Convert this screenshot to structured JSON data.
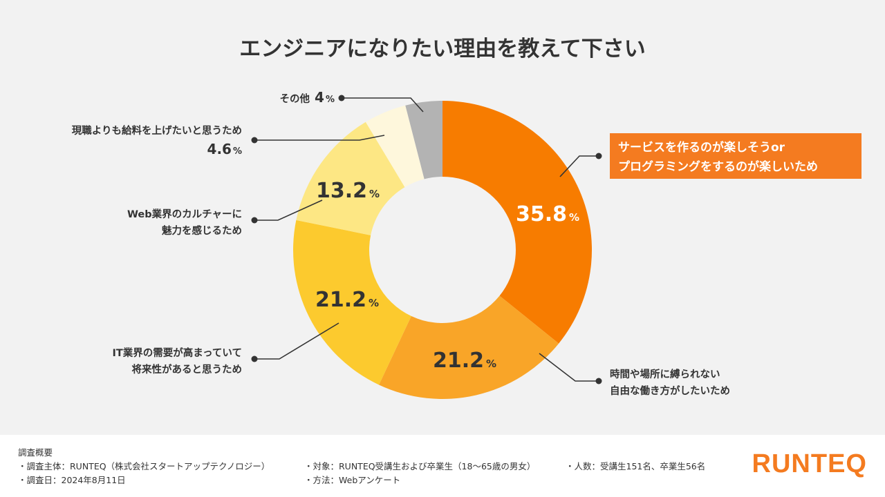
{
  "colors": {
    "background": "#f2f2f2",
    "accent": "#f47b20",
    "text": "#333333",
    "slices": [
      "#f77c00",
      "#f9a528",
      "#fcca2e",
      "#fde784",
      "#fef7dc",
      "#b3b3b3"
    ]
  },
  "chart_data": {
    "type": "pie",
    "title": "エンジニアになりたい理由を教えて下さい",
    "unit": "%",
    "slices": [
      {
        "label": "サービスを作るのが楽しそうor\nプログラミングをするのが楽しいため",
        "value": 35.8,
        "value_text": "35.8",
        "highlight": true
      },
      {
        "label": "時間や場所に縛られない\n自由な働き方がしたいため",
        "value": 21.2,
        "value_text": "21.2"
      },
      {
        "label": "IT業界の需要が高まっていて\n将来性があると思うため",
        "value": 21.2,
        "value_text": "21.2"
      },
      {
        "label": "Web業界のカルチャーに\n魅力を感じるため",
        "value": 13.2,
        "value_text": "13.2"
      },
      {
        "label": "現職よりも給料を上げたいと思うため",
        "value": 4.6,
        "value_text": "4.6"
      },
      {
        "label": "その他",
        "value": 4.0,
        "value_text": "4"
      }
    ]
  },
  "footer": {
    "heading": "調査概要",
    "items": [
      "・調査主体：RUNTEQ（株式会社スタートアップテクノロジー）",
      "・対象：RUNTEQ受講生および卒業生（18〜65歳の男女）",
      "・人数：受講生151名、卒業生56名",
      "・調査日：2024年8月11日",
      "・方法：Webアンケート"
    ],
    "logo": "RUNTEQ"
  }
}
